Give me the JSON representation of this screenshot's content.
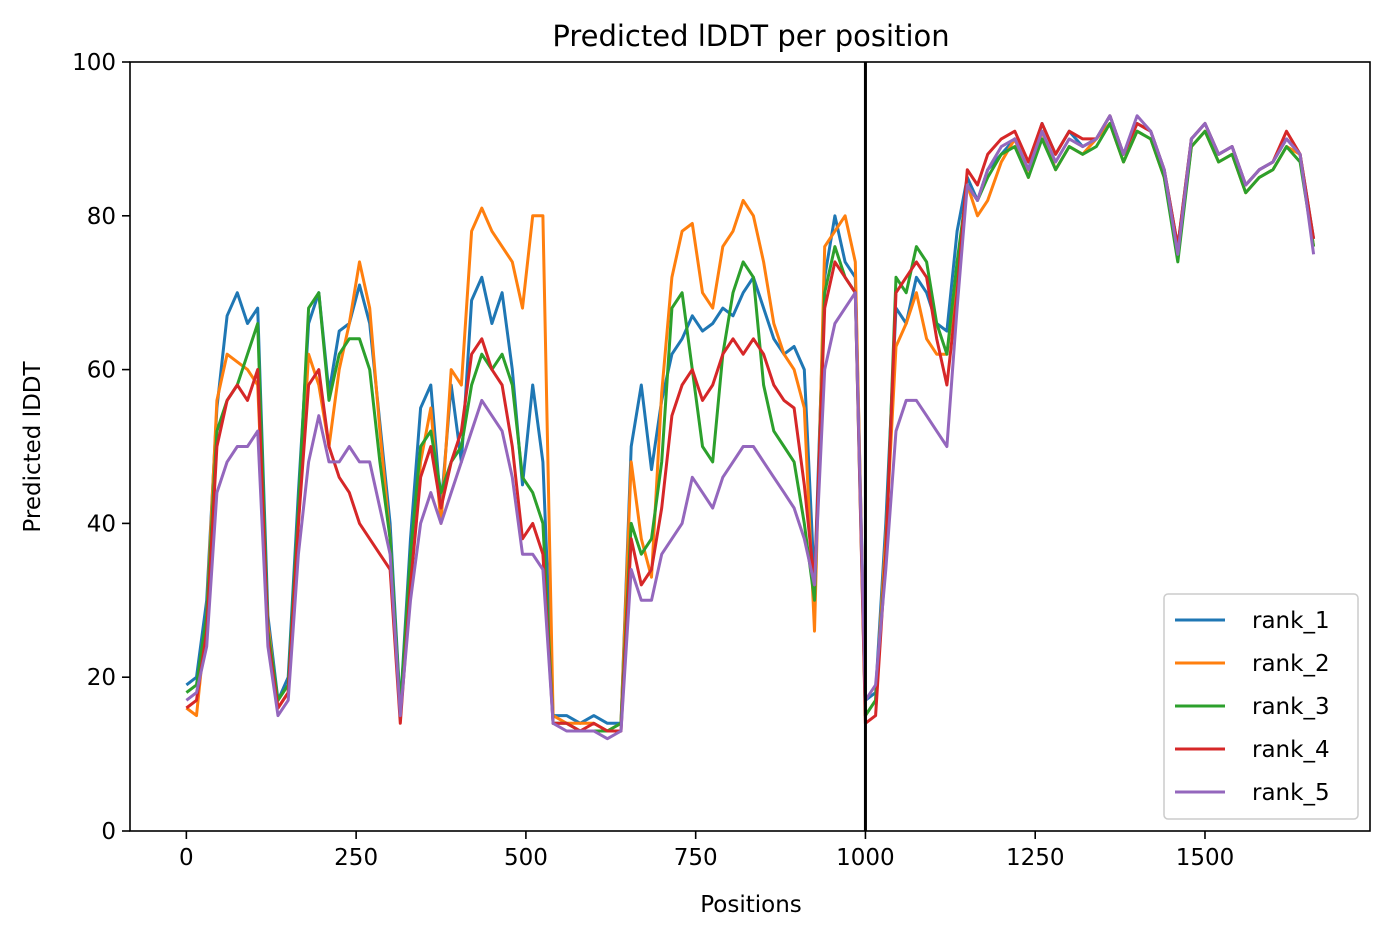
{
  "chart_data": {
    "type": "line",
    "title": "Predicted lDDT per position",
    "xlabel": "Positions",
    "ylabel": "Predicted lDDT",
    "xlim": [
      -83,
      1743
    ],
    "ylim": [
      0,
      100
    ],
    "xticks": [
      0,
      250,
      500,
      750,
      1000,
      1250,
      1500
    ],
    "yticks": [
      0,
      20,
      40,
      60,
      80,
      100
    ],
    "vline": 1000,
    "legend_position": "lower right",
    "grid": false,
    "series": [
      {
        "name": "rank_1",
        "color": "#1f77b4",
        "x": [
          0,
          15,
          30,
          45,
          60,
          75,
          90,
          105,
          120,
          135,
          150,
          165,
          180,
          195,
          210,
          225,
          240,
          255,
          270,
          285,
          300,
          315,
          330,
          345,
          360,
          375,
          390,
          405,
          420,
          435,
          450,
          465,
          480,
          495,
          510,
          525,
          540,
          560,
          580,
          600,
          620,
          640,
          655,
          670,
          685,
          700,
          715,
          730,
          745,
          760,
          775,
          790,
          805,
          820,
          835,
          850,
          865,
          880,
          895,
          910,
          925,
          940,
          955,
          970,
          985,
          1000,
          1015,
          1030,
          1045,
          1060,
          1075,
          1090,
          1105,
          1120,
          1135,
          1150,
          1165,
          1180,
          1200,
          1220,
          1240,
          1260,
          1280,
          1300,
          1320,
          1340,
          1360,
          1380,
          1400,
          1420,
          1440,
          1460,
          1480,
          1500,
          1520,
          1540,
          1560,
          1580,
          1600,
          1620,
          1640,
          1660
        ],
        "y": [
          19,
          20,
          30,
          55,
          67,
          70,
          66,
          68,
          28,
          17,
          20,
          44,
          66,
          70,
          57,
          65,
          66,
          71,
          66,
          53,
          40,
          16,
          38,
          55,
          58,
          42,
          58,
          48,
          69,
          72,
          66,
          70,
          60,
          45,
          58,
          48,
          15,
          15,
          14,
          15,
          14,
          14,
          50,
          58,
          47,
          56,
          62,
          64,
          67,
          65,
          66,
          68,
          67,
          70,
          72,
          68,
          64,
          62,
          63,
          60,
          32,
          72,
          80,
          74,
          72,
          17,
          18,
          40,
          68,
          66,
          72,
          70,
          66,
          65,
          78,
          85,
          82,
          86,
          88,
          90,
          86,
          92,
          88,
          91,
          89,
          90,
          93,
          88,
          92,
          91,
          86,
          76,
          90,
          92,
          88,
          89,
          84,
          86,
          87,
          90,
          88,
          77
        ]
      },
      {
        "name": "rank_2",
        "color": "#ff7f0e",
        "x": [
          0,
          15,
          30,
          45,
          60,
          75,
          90,
          105,
          120,
          135,
          150,
          165,
          180,
          195,
          210,
          225,
          240,
          255,
          270,
          285,
          300,
          315,
          330,
          345,
          360,
          375,
          390,
          405,
          420,
          435,
          450,
          465,
          480,
          495,
          510,
          525,
          540,
          560,
          580,
          600,
          620,
          640,
          655,
          670,
          685,
          700,
          715,
          730,
          745,
          760,
          775,
          790,
          805,
          820,
          835,
          850,
          865,
          880,
          895,
          910,
          925,
          940,
          955,
          970,
          985,
          1000,
          1015,
          1030,
          1045,
          1060,
          1075,
          1090,
          1105,
          1120,
          1135,
          1150,
          1165,
          1180,
          1200,
          1220,
          1240,
          1260,
          1280,
          1300,
          1320,
          1340,
          1360,
          1380,
          1400,
          1420,
          1440,
          1460,
          1480,
          1500,
          1520,
          1540,
          1560,
          1580,
          1600,
          1620,
          1640,
          1660
        ],
        "y": [
          16,
          15,
          28,
          56,
          62,
          61,
          60,
          58,
          27,
          16,
          18,
          40,
          62,
          58,
          50,
          60,
          66,
          74,
          68,
          52,
          38,
          15,
          34,
          48,
          55,
          40,
          60,
          58,
          78,
          81,
          78,
          76,
          74,
          68,
          80,
          80,
          15,
          14,
          14,
          14,
          13,
          14,
          48,
          38,
          33,
          57,
          72,
          78,
          79,
          70,
          68,
          76,
          78,
          82,
          80,
          74,
          66,
          62,
          60,
          55,
          26,
          76,
          78,
          80,
          74,
          15,
          17,
          38,
          63,
          66,
          70,
          64,
          62,
          62,
          72,
          84,
          80,
          82,
          87,
          90,
          85,
          91,
          86,
          89,
          88,
          90,
          92,
          87,
          91,
          90,
          85,
          75,
          89,
          91,
          87,
          88,
          83,
          85,
          86,
          89,
          88,
          76
        ]
      },
      {
        "name": "rank_3",
        "color": "#2ca02c",
        "x": [
          0,
          15,
          30,
          45,
          60,
          75,
          90,
          105,
          120,
          135,
          150,
          165,
          180,
          195,
          210,
          225,
          240,
          255,
          270,
          285,
          300,
          315,
          330,
          345,
          360,
          375,
          390,
          405,
          420,
          435,
          450,
          465,
          480,
          495,
          510,
          525,
          540,
          560,
          580,
          600,
          620,
          640,
          655,
          670,
          685,
          700,
          715,
          730,
          745,
          760,
          775,
          790,
          805,
          820,
          835,
          850,
          865,
          880,
          895,
          910,
          925,
          940,
          955,
          970,
          985,
          1000,
          1015,
          1030,
          1045,
          1060,
          1075,
          1090,
          1105,
          1120,
          1135,
          1150,
          1165,
          1180,
          1200,
          1220,
          1240,
          1260,
          1280,
          1300,
          1320,
          1340,
          1360,
          1380,
          1400,
          1420,
          1440,
          1460,
          1480,
          1500,
          1520,
          1540,
          1560,
          1580,
          1600,
          1620,
          1640,
          1660
        ],
        "y": [
          18,
          19,
          28,
          52,
          56,
          58,
          62,
          66,
          26,
          17,
          19,
          42,
          68,
          70,
          56,
          62,
          64,
          64,
          60,
          48,
          38,
          16,
          36,
          50,
          52,
          44,
          48,
          50,
          58,
          62,
          60,
          62,
          58,
          46,
          44,
          40,
          14,
          14,
          13,
          13,
          13,
          14,
          40,
          36,
          38,
          48,
          68,
          70,
          60,
          50,
          48,
          62,
          70,
          74,
          72,
          58,
          52,
          50,
          48,
          40,
          30,
          70,
          76,
          72,
          70,
          15,
          17,
          36,
          72,
          70,
          76,
          74,
          66,
          62,
          74,
          84,
          82,
          85,
          88,
          89,
          85,
          90,
          86,
          89,
          88,
          89,
          92,
          87,
          91,
          90,
          85,
          74,
          89,
          91,
          87,
          88,
          83,
          85,
          86,
          89,
          87,
          76
        ]
      },
      {
        "name": "rank_4",
        "color": "#d62728",
        "x": [
          0,
          15,
          30,
          45,
          60,
          75,
          90,
          105,
          120,
          135,
          150,
          165,
          180,
          195,
          210,
          225,
          240,
          255,
          270,
          285,
          300,
          315,
          330,
          345,
          360,
          375,
          390,
          405,
          420,
          435,
          450,
          465,
          480,
          495,
          510,
          525,
          540,
          560,
          580,
          600,
          620,
          640,
          655,
          670,
          685,
          700,
          715,
          730,
          745,
          760,
          775,
          790,
          805,
          820,
          835,
          850,
          865,
          880,
          895,
          910,
          925,
          940,
          955,
          970,
          985,
          1000,
          1015,
          1030,
          1045,
          1060,
          1075,
          1090,
          1105,
          1120,
          1135,
          1150,
          1165,
          1180,
          1200,
          1220,
          1240,
          1260,
          1280,
          1300,
          1320,
          1340,
          1360,
          1380,
          1400,
          1420,
          1440,
          1460,
          1480,
          1500,
          1520,
          1540,
          1560,
          1580,
          1600,
          1620,
          1640,
          1660
        ],
        "y": [
          16,
          17,
          26,
          50,
          56,
          58,
          56,
          60,
          25,
          16,
          18,
          40,
          58,
          60,
          50,
          46,
          44,
          40,
          38,
          36,
          34,
          14,
          32,
          46,
          50,
          42,
          48,
          52,
          62,
          64,
          60,
          58,
          50,
          38,
          40,
          36,
          14,
          14,
          13,
          14,
          13,
          13,
          38,
          32,
          34,
          42,
          54,
          58,
          60,
          56,
          58,
          62,
          64,
          62,
          64,
          62,
          58,
          56,
          55,
          45,
          32,
          68,
          74,
          72,
          70,
          14,
          15,
          36,
          70,
          72,
          74,
          72,
          64,
          58,
          70,
          86,
          84,
          88,
          90,
          91,
          87,
          92,
          88,
          91,
          90,
          90,
          93,
          88,
          92,
          91,
          86,
          76,
          90,
          92,
          88,
          89,
          84,
          86,
          87,
          91,
          88,
          77
        ]
      },
      {
        "name": "rank_5",
        "color": "#9467bd",
        "x": [
          0,
          15,
          30,
          45,
          60,
          75,
          90,
          105,
          120,
          135,
          150,
          165,
          180,
          195,
          210,
          225,
          240,
          255,
          270,
          285,
          300,
          315,
          330,
          345,
          360,
          375,
          390,
          405,
          420,
          435,
          450,
          465,
          480,
          495,
          510,
          525,
          540,
          560,
          580,
          600,
          620,
          640,
          655,
          670,
          685,
          700,
          715,
          730,
          745,
          760,
          775,
          790,
          805,
          820,
          835,
          850,
          865,
          880,
          895,
          910,
          925,
          940,
          955,
          970,
          985,
          1000,
          1015,
          1030,
          1045,
          1060,
          1075,
          1090,
          1105,
          1120,
          1135,
          1150,
          1165,
          1180,
          1200,
          1220,
          1240,
          1260,
          1280,
          1300,
          1320,
          1340,
          1360,
          1380,
          1400,
          1420,
          1440,
          1460,
          1480,
          1500,
          1520,
          1540,
          1560,
          1580,
          1600,
          1620,
          1640,
          1660
        ],
        "y": [
          17,
          18,
          24,
          44,
          48,
          50,
          50,
          52,
          24,
          15,
          17,
          36,
          48,
          54,
          48,
          48,
          50,
          48,
          48,
          42,
          36,
          15,
          30,
          40,
          44,
          40,
          44,
          48,
          52,
          56,
          54,
          52,
          46,
          36,
          36,
          34,
          14,
          13,
          13,
          13,
          12,
          13,
          34,
          30,
          30,
          36,
          38,
          40,
          46,
          44,
          42,
          46,
          48,
          50,
          50,
          48,
          46,
          44,
          42,
          38,
          32,
          60,
          66,
          68,
          70,
          17,
          19,
          34,
          52,
          56,
          56,
          54,
          52,
          50,
          68,
          84,
          82,
          86,
          89,
          90,
          86,
          91,
          87,
          90,
          89,
          90,
          93,
          88,
          93,
          91,
          86,
          75,
          90,
          92,
          88,
          89,
          84,
          86,
          87,
          90,
          88,
          75
        ]
      }
    ]
  }
}
